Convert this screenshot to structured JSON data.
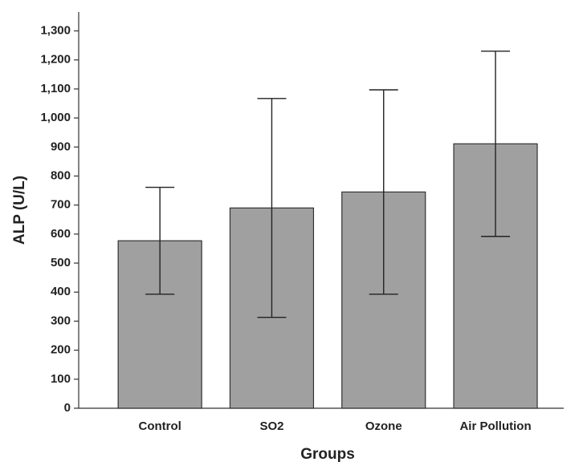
{
  "chart_data": {
    "type": "bar",
    "categories": [
      "Control",
      "SO2",
      "Ozone",
      "Air Pollution"
    ],
    "values": [
      577,
      690,
      745,
      911
    ],
    "errors": [
      184,
      377,
      352,
      319
    ],
    "color": "#a0a0a0",
    "x_label": "Groups",
    "y_label": "ALP (U/L)",
    "ylim": [
      0,
      1365
    ],
    "yticks": [
      0,
      100,
      200,
      300,
      400,
      500,
      600,
      700,
      800,
      900,
      {
        "value": 1000,
        "label": "1,000"
      },
      {
        "value": 1100,
        "label": "1,100"
      },
      {
        "value": 1200,
        "label": "1,200"
      },
      {
        "value": 1300,
        "label": "1,300"
      }
    ],
    "grid": false
  }
}
